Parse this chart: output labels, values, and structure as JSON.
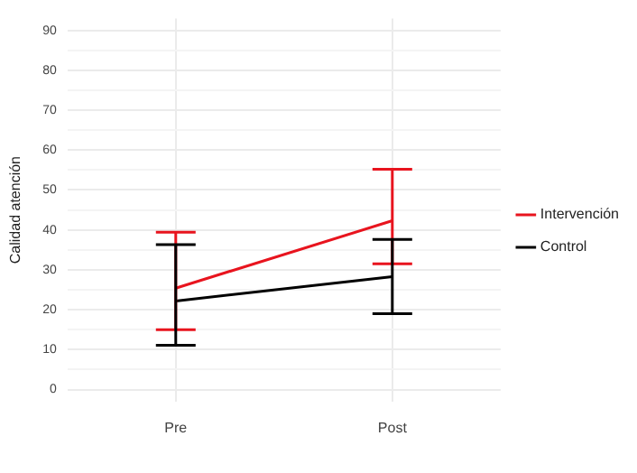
{
  "chart_data": {
    "type": "line",
    "ylabel": "Calidad atención",
    "categories": [
      "Pre",
      "Post"
    ],
    "series": [
      {
        "name": "Intervención",
        "color": "#e8141e",
        "values": [
          25.4,
          42.3
        ],
        "errors": [
          [
            15,
            39.4
          ],
          [
            31.5,
            55.2
          ]
        ]
      },
      {
        "name": "Control",
        "color": "#000000",
        "values": [
          22.2,
          28.3
        ],
        "errors": [
          [
            11.1,
            36.3
          ],
          [
            19,
            37.6
          ]
        ]
      }
    ],
    "ylim": [
      -3,
      93
    ],
    "yticks": [
      0,
      {
        "value": 5,
        "label": null
      },
      10,
      {
        "value": 15,
        "label": null
      },
      20,
      {
        "value": 25,
        "label": null
      },
      30,
      {
        "value": 35,
        "label": null
      },
      40,
      {
        "value": 45,
        "label": null
      },
      50,
      {
        "value": 55,
        "label": null
      },
      60,
      {
        "value": 65,
        "label": null
      },
      70,
      {
        "value": 75,
        "label": null
      },
      80,
      {
        "value": 85,
        "label": null
      },
      90
    ],
    "grid": true,
    "legend": "right",
    "marker": "none",
    "line_style": "solid"
  }
}
